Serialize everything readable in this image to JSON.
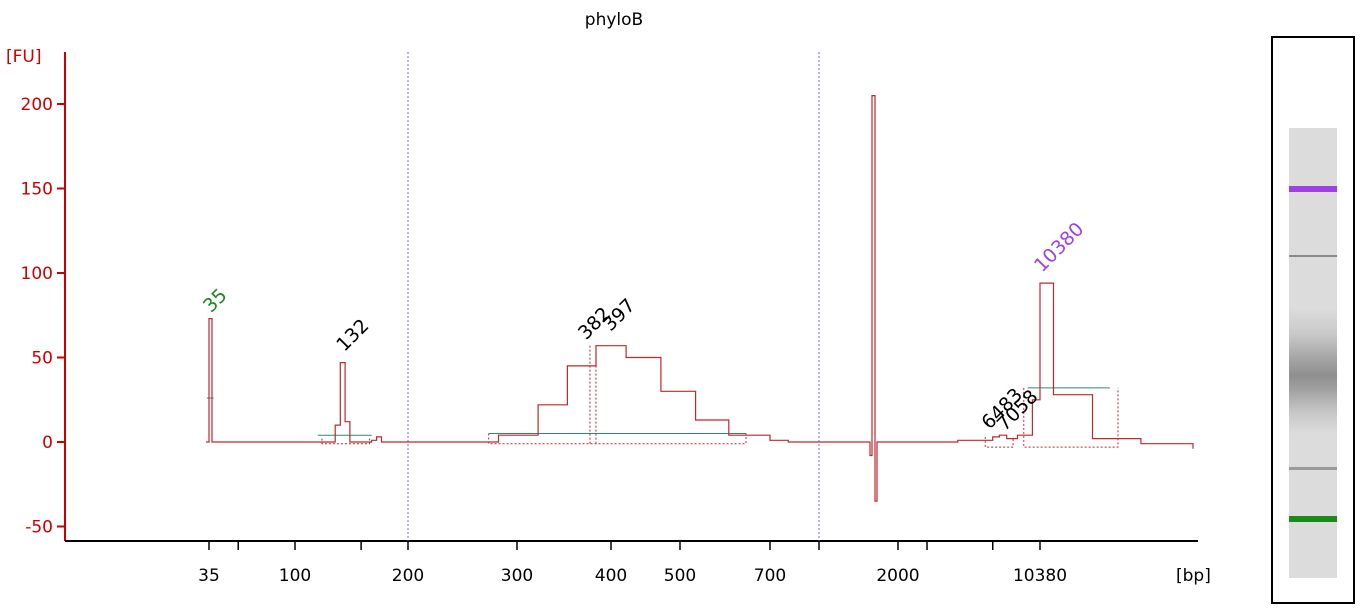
{
  "chart_data": {
    "type": "line",
    "title": "phyloB",
    "ylabel": "[FU]",
    "xlabel": "[bp]",
    "ylim": [
      -55,
      215
    ],
    "yticks": [
      "200",
      "150",
      "100",
      "50",
      "0",
      "-50"
    ],
    "x_tick_labels": [
      "35",
      "100",
      "200",
      "300",
      "400",
      "500",
      "700",
      "2000",
      "10380"
    ],
    "series": [
      {
        "values_description_x": "migration axis labeled in bp",
        "x": [
          35,
          40,
          60,
          100,
          125,
          128,
          132,
          136,
          140,
          160,
          165,
          170,
          200,
          230,
          280,
          320,
          350,
          382,
          397,
          420,
          470,
          530,
          600,
          700,
          800,
          900,
          950,
          1000,
          1500,
          2000,
          4000,
          6000,
          6483,
          7058,
          8000,
          9500,
          10380,
          11000,
          13000,
          16000,
          20000
        ],
        "y": [
          0,
          0,
          0,
          0,
          0,
          10,
          47,
          12,
          0,
          1,
          3,
          0,
          0,
          0,
          4,
          22,
          45,
          57,
          57,
          50,
          30,
          13,
          4,
          1,
          0,
          0,
          0,
          0,
          0,
          0,
          1,
          3,
          4,
          2,
          4,
          25,
          94,
          28,
          2,
          -1,
          -4
        ],
        "marker_spikes": [
          {
            "x": 35,
            "y": 73
          },
          {
            "x": 1250,
            "y": 205,
            "min": -35
          }
        ]
      }
    ],
    "peak_labels": [
      {
        "text": "35",
        "color": "#1a8a1a"
      },
      {
        "text": "132",
        "color": "#000000"
      },
      {
        "text": "382",
        "color": "#000000"
      },
      {
        "text": "397",
        "color": "#000000"
      },
      {
        "text": "6483",
        "color": "#000000"
      },
      {
        "text": "7058",
        "color": "#000000"
      },
      {
        "text": "10380",
        "color": "#a040e0"
      }
    ],
    "colors": {
      "trace": "#c0272d",
      "axis": "#cc0000",
      "lower_marker": "#1a8a1a",
      "upper_marker": "#a040e0",
      "baseline": "#2a8a6a",
      "region_divider": "#6b6bcc"
    }
  },
  "gel": {
    "bands": [
      {
        "name": "upper-marker",
        "color": "#a040e0"
      },
      {
        "name": "mid-band",
        "color": "#8a8a8a"
      },
      {
        "name": "lower-band",
        "color": "#9a9a9a"
      },
      {
        "name": "lower-marker",
        "color": "#1a8a1a"
      }
    ]
  }
}
